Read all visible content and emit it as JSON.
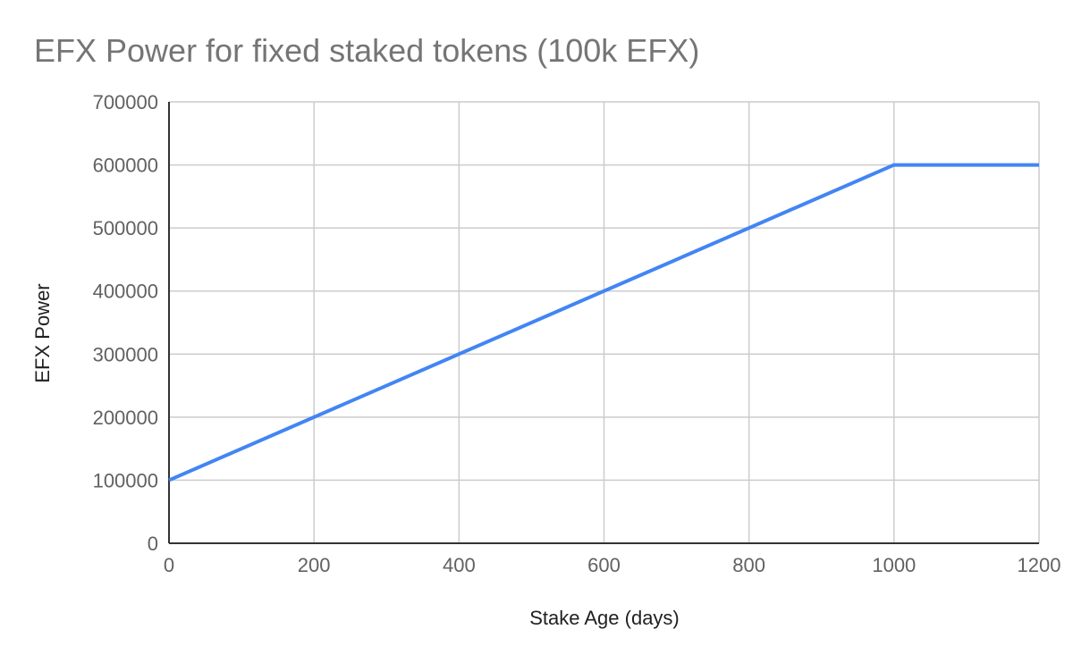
{
  "chart_data": {
    "type": "line",
    "title": "EFX Power for fixed staked tokens (100k EFX)",
    "xlabel": "Stake Age (days)",
    "ylabel": "EFX Power",
    "xlim": [
      0,
      1200
    ],
    "ylim": [
      0,
      700000
    ],
    "x_ticks": [
      0,
      200,
      400,
      600,
      800,
      1000,
      1200
    ],
    "y_ticks": [
      0,
      100000,
      200000,
      300000,
      400000,
      500000,
      600000,
      700000
    ],
    "grid": true,
    "legend": "none",
    "series": [
      {
        "color": "#4285F4",
        "points": [
          {
            "x": 0,
            "y": 100000
          },
          {
            "x": 1000,
            "y": 600000
          },
          {
            "x": 1200,
            "y": 600000
          }
        ]
      }
    ]
  }
}
